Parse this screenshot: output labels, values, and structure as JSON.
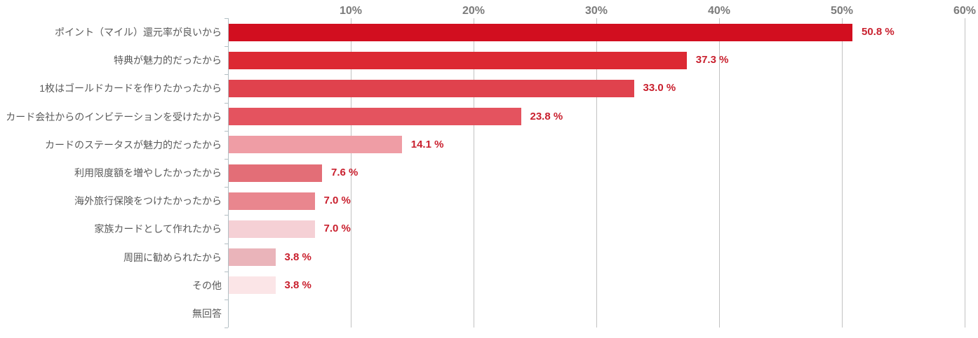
{
  "chart_data": {
    "type": "bar",
    "orientation": "horizontal",
    "title": "",
    "xlabel": "",
    "ylabel": "",
    "xlim": [
      0,
      60
    ],
    "grid": true,
    "axis_ticks": [
      {
        "label": "10%",
        "value": 10
      },
      {
        "label": "20%",
        "value": 20
      },
      {
        "label": "30%",
        "value": 30
      },
      {
        "label": "40%",
        "value": 40
      },
      {
        "label": "50%",
        "value": 50
      },
      {
        "label": "60%",
        "value": 60
      }
    ],
    "rows": [
      {
        "category": "ポイント（マイル）還元率が良いから",
        "value": 50.8,
        "value_label": "50.8 %",
        "color": "#d20e1f"
      },
      {
        "category": "特典が魅力的だったから",
        "value": 37.3,
        "value_label": "37.3 %",
        "color": "#dc2933"
      },
      {
        "category": "1枚はゴールドカードを作りたかったから",
        "value": 33.0,
        "value_label": "33.0 %",
        "color": "#e0424d"
      },
      {
        "category": "カード会社からのインビテーションを受けたから",
        "value": 23.8,
        "value_label": "23.8 %",
        "color": "#e4535f"
      },
      {
        "category": "カードのステータスが魅力的だったから",
        "value": 14.1,
        "value_label": "14.1 %",
        "color": "#ef9da5"
      },
      {
        "category": "利用限度額を増やしたかったから",
        "value": 7.6,
        "value_label": "7.6 %",
        "color": "#e36e77"
      },
      {
        "category": "海外旅行保険をつけたかったから",
        "value": 7.0,
        "value_label": "7.0 %",
        "color": "#e9868e"
      },
      {
        "category": "家族カードとして作れたから",
        "value": 7.0,
        "value_label": "7.0 %",
        "color": "#f5d0d5"
      },
      {
        "category": "周囲に勧められたから",
        "value": 3.8,
        "value_label": "3.8 %",
        "color": "#eab4ba"
      },
      {
        "category": "その他",
        "value": 3.8,
        "value_label": "3.8 %",
        "color": "#fbe5e7"
      },
      {
        "category": "無回答",
        "value": 0,
        "value_label": "",
        "color": null
      }
    ]
  },
  "style": {
    "background": "#ffffff",
    "value_label_color": "#c9202e",
    "category_label_color": "#595959",
    "axis_label_color": "#7b7b7b",
    "gridline_color": "#c2c2c2",
    "axis_line_color": "#b3bfc4"
  }
}
